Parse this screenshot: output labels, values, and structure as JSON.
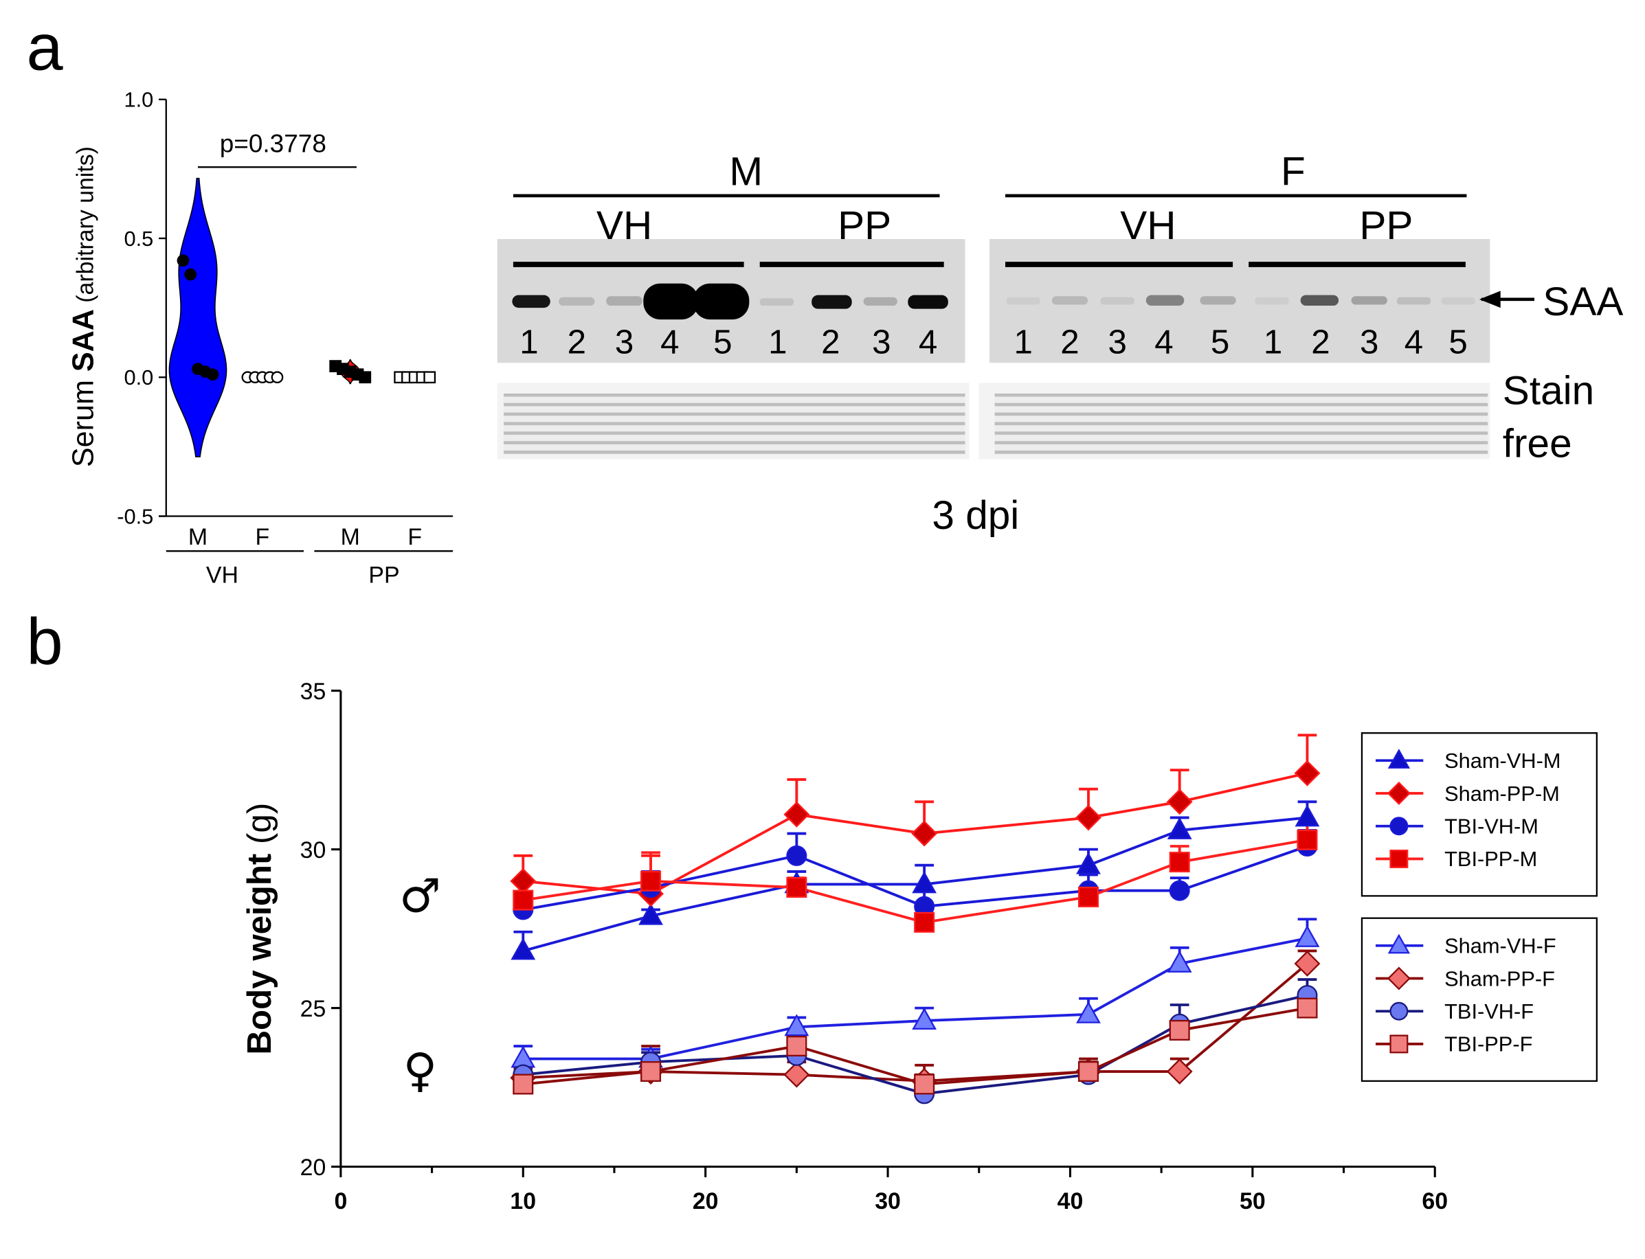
{
  "panel_labels": [
    "a",
    "b"
  ],
  "blot": {
    "sex": [
      "M",
      "F"
    ],
    "treatments": [
      "VH",
      "PP",
      "VH",
      "PP"
    ],
    "lanes": [
      [
        1,
        2,
        3,
        4,
        5
      ],
      [
        1,
        2,
        3,
        4
      ],
      [
        1,
        2,
        3,
        4,
        5
      ],
      [
        1,
        2,
        3,
        4,
        5
      ]
    ],
    "band_label": "SAA",
    "stain_label": [
      "Stain",
      "free"
    ],
    "timepoint": "3 dpi"
  },
  "chart_data": [
    {
      "type": "violin",
      "ylabel": [
        "Serum ",
        "SAA",
        " (arbitrary units)"
      ],
      "ylim": [
        -0.5,
        1.0
      ],
      "yticks": [
        -0.5,
        {
          "value": 0,
          "label": "0.0"
        },
        0.5,
        {
          "value": 1,
          "label": "1.0"
        }
      ],
      "categories": [
        "M",
        "F",
        "M",
        "F"
      ],
      "groups": [
        "VH",
        "PP"
      ],
      "annotation": "p=0.3778",
      "series": [
        {
          "color": "#0000ff",
          "marker": "circle",
          "marker_fill": "#000000",
          "values": [
            0.42,
            0.37,
            0.03,
            0.02,
            0.01
          ]
        },
        {
          "color": "#0000ff",
          "marker": "circle",
          "marker_fill": "#ffffff",
          "values": [
            0,
            0,
            0,
            0,
            0
          ]
        },
        {
          "color": "#ff1010",
          "marker": "square",
          "marker_fill": "#000000",
          "values": [
            0.04,
            0.03,
            0.02,
            0.01,
            0.0
          ]
        },
        {
          "color": "#ff1010",
          "marker": "square",
          "marker_fill": "#ffffff",
          "values": [
            0,
            0,
            0,
            0,
            0
          ]
        }
      ]
    },
    {
      "type": "line",
      "ylabel": [
        "Body weight",
        " (g)"
      ],
      "sex_symbols": [
        "♂",
        "♀"
      ],
      "x": [
        10,
        17,
        25,
        32,
        41,
        46,
        53
      ],
      "xlim": [
        0,
        60
      ],
      "xticks": [
        0,
        10,
        20,
        30,
        40,
        50,
        60
      ],
      "ylim": [
        20,
        35
      ],
      "yticks": [
        20,
        25,
        30,
        35
      ],
      "series": [
        {
          "name": "Sham-VH-M",
          "color": "#1a1ad8",
          "marker": "triangle",
          "marker_fill": "#1010c8",
          "values": [
            26.8,
            27.9,
            28.9,
            28.9,
            29.5,
            30.6,
            31.0
          ],
          "errors": [
            0.6,
            0.2,
            0.4,
            0.6,
            0.5,
            0.4,
            0.5
          ]
        },
        {
          "name": "Sham-PP-M",
          "color": "#ff1a1a",
          "marker": "diamond",
          "marker_fill": "#d00000",
          "values": [
            29.0,
            28.6,
            31.1,
            30.5,
            31.0,
            31.5,
            32.4
          ],
          "errors": [
            0.8,
            1.2,
            1.1,
            1.0,
            0.9,
            1.0,
            1.2
          ]
        },
        {
          "name": "TBI-VH-M",
          "color": "#1a1ad8",
          "marker": "circle",
          "marker_fill": "#1515cc",
          "values": [
            28.1,
            28.8,
            29.8,
            28.2,
            28.7,
            28.7,
            30.1
          ],
          "errors": [
            0.4,
            0.5,
            0.7,
            0.5,
            0.5,
            0.4,
            0.5
          ]
        },
        {
          "name": "TBI-PP-M",
          "color": "#ff2020",
          "marker": "square",
          "marker_fill": "#e00000",
          "values": [
            28.4,
            29.0,
            28.8,
            27.7,
            28.5,
            29.6,
            30.3
          ],
          "errors": [
            0.6,
            0.9,
            0.3,
            0.4,
            0.3,
            0.5,
            0.5
          ]
        },
        {
          "name": "Sham-VH-F",
          "color": "#2020e0",
          "marker": "triangle",
          "marker_fill": "#7080ff",
          "values": [
            23.4,
            23.4,
            24.4,
            24.6,
            24.8,
            26.4,
            27.2
          ],
          "errors": [
            0.4,
            0.3,
            0.3,
            0.4,
            0.5,
            0.5,
            0.6
          ]
        },
        {
          "name": "Sham-PP-F",
          "color": "#8b0a0a",
          "marker": "diamond",
          "marker_fill": "#f07070",
          "values": [
            22.8,
            23.0,
            22.9,
            22.7,
            23.0,
            23.0,
            26.4
          ],
          "errors": [
            0.3,
            0.4,
            0.4,
            0.5,
            0.4,
            0.4,
            0.4
          ]
        },
        {
          "name": "TBI-VH-F",
          "color": "#1a1a80",
          "marker": "circle",
          "marker_fill": "#6a78f0",
          "values": [
            22.9,
            23.3,
            23.5,
            22.3,
            22.9,
            24.5,
            25.4
          ],
          "errors": [
            0.3,
            0.3,
            0.3,
            0.3,
            0.3,
            0.6,
            0.5
          ]
        },
        {
          "name": "TBI-PP-F",
          "color": "#8b0a0a",
          "marker": "square",
          "marker_fill": "#f08080",
          "values": [
            22.6,
            23.0,
            23.8,
            22.6,
            23.0,
            24.3,
            25.0
          ],
          "errors": [
            0.3,
            0.8,
            0.3,
            0.3,
            0.3,
            0.3,
            0.5
          ]
        }
      ]
    }
  ]
}
